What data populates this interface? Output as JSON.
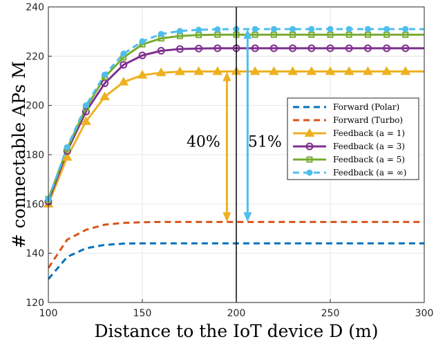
{
  "chart_data": {
    "type": "line",
    "title": "",
    "xlabel": "Distance to the IoT device D (m)",
    "ylabel": "# connectable APs M",
    "xlim": [
      100,
      300
    ],
    "ylim": [
      120,
      240
    ],
    "xticks": [
      100,
      150,
      200,
      250,
      300
    ],
    "yticks": [
      120,
      140,
      160,
      180,
      200,
      220,
      240
    ],
    "grid": true,
    "legend_position": "center-right",
    "x": [
      100,
      110,
      120,
      130,
      140,
      150,
      160,
      170,
      180,
      190,
      200,
      210,
      220,
      230,
      240,
      250,
      260,
      270,
      280,
      290,
      300
    ],
    "series": [
      {
        "name": "Forward (Polar)",
        "legend_label": "Forward (Polar)",
        "style": "dashed",
        "marker": "none",
        "color": "#0072BD",
        "values": [
          129.5,
          138.5,
          142,
          143.4,
          143.9,
          144,
          144,
          144,
          144,
          144,
          144,
          144,
          144,
          144,
          144,
          144,
          144,
          144,
          144,
          144,
          144
        ]
      },
      {
        "name": "Forward (Turbo)",
        "legend_label": "Forward (Turbo)",
        "style": "dashed",
        "marker": "none",
        "color": "#D95319",
        "values": [
          134,
          145.5,
          149.5,
          151.6,
          152.3,
          152.6,
          152.7,
          152.7,
          152.7,
          152.7,
          152.7,
          152.7,
          152.7,
          152.7,
          152.7,
          152.7,
          152.7,
          152.7,
          152.7,
          152.7,
          152.7
        ]
      },
      {
        "name": "Feedback (a = 1)",
        "legend_label": "Feedback (a = 1)",
        "style": "solid",
        "marker": "triangle",
        "color": "#EDB120",
        "values": [
          160,
          179,
          193.5,
          203.5,
          209.5,
          212.3,
          213.3,
          213.7,
          213.8,
          213.8,
          213.8,
          213.8,
          213.8,
          213.8,
          213.8,
          213.8,
          213.8,
          213.8,
          213.8,
          213.8,
          213.8
        ]
      },
      {
        "name": "Feedback (a = 3)",
        "legend_label": "Feedback (a = 3)",
        "style": "solid",
        "marker": "circle",
        "color": "#7E2F8E",
        "values": [
          161,
          181.5,
          197.5,
          209,
          216.5,
          220.3,
          222.2,
          222.9,
          223.1,
          223.2,
          223.2,
          223.2,
          223.2,
          223.2,
          223.2,
          223.2,
          223.2,
          223.2,
          223.2,
          223.2,
          223.2
        ]
      },
      {
        "name": "Feedback (a = 5)",
        "legend_label": "Feedback (a = 5)",
        "style": "solid",
        "marker": "square",
        "color": "#77AC30",
        "values": [
          162,
          182.5,
          199,
          211.5,
          219.5,
          224.8,
          227.2,
          228.2,
          228.6,
          228.7,
          228.7,
          228.7,
          228.7,
          228.7,
          228.7,
          228.7,
          228.7,
          228.7,
          228.7,
          228.7,
          228.7
        ]
      },
      {
        "name": "Feedback (a = ∞)",
        "legend_label": "Feedback (a = ∞)",
        "style": "dashed",
        "marker": "filled-circle",
        "color": "#4DBEEE",
        "values": [
          162,
          183,
          200,
          212.5,
          221,
          226,
          229,
          230.2,
          230.7,
          230.9,
          231,
          231,
          231,
          231,
          231,
          231,
          231,
          231,
          231,
          231,
          231
        ]
      }
    ],
    "reference_line": {
      "x": 200,
      "color": "#000000"
    },
    "annotations": [
      {
        "text": "40%",
        "x_data": 195,
        "from_y": 152.7,
        "to_y": 213.8,
        "color": "#EDB120"
      },
      {
        "text": "51%",
        "x_data": 206,
        "from_y": 152.7,
        "to_y": 231,
        "color": "#4DBEEE"
      }
    ]
  }
}
